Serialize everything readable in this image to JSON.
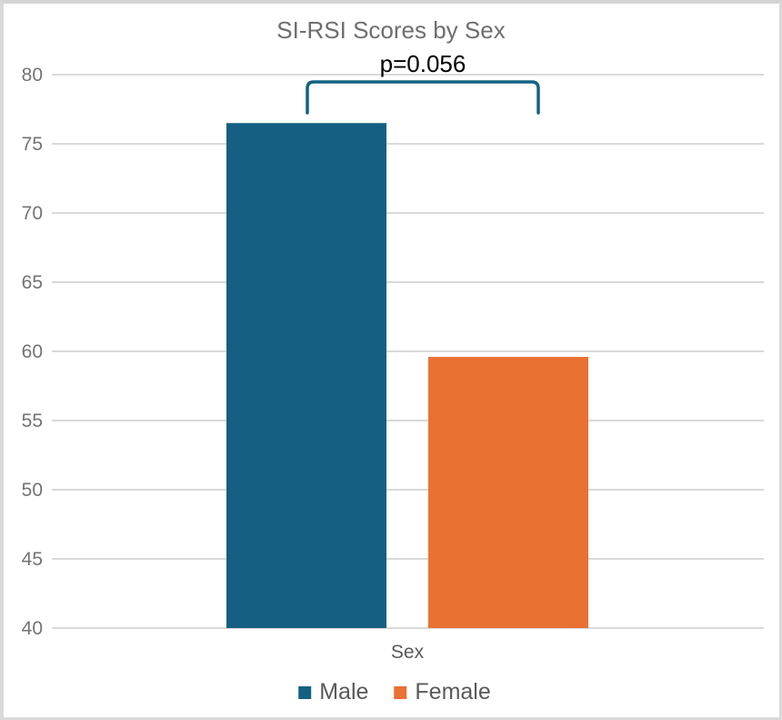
{
  "window": {
    "frame_color": "#d9d9d9",
    "background": "#ffffff"
  },
  "chart_data": {
    "type": "bar",
    "title": "SI-RSI Scores by Sex",
    "annotation": "p=0.056",
    "xlabel": "Sex",
    "ylabel": "",
    "categories": [
      "Sex"
    ],
    "series": [
      {
        "name": "Male",
        "values": [
          76.5
        ],
        "color": "#156082"
      },
      {
        "name": "Female",
        "values": [
          59.6
        ],
        "color": "#E97132"
      }
    ],
    "y_axis": {
      "min": 40,
      "max": 80,
      "step": 5,
      "ticks": [
        40,
        45,
        50,
        55,
        60,
        65,
        70,
        75,
        80
      ]
    },
    "grid": true,
    "legend_position": "bottom",
    "significance_bracket": {
      "between": [
        "Male",
        "Female"
      ],
      "label": "p=0.056",
      "color": "#156082"
    }
  },
  "styles": {
    "title_color": "#6e6e6e",
    "annotation_color": "#000000",
    "tick_color": "#737373",
    "axis_label_color": "#595959",
    "legend_text_color": "#595959",
    "gridline_color": "#d9d9d9"
  }
}
